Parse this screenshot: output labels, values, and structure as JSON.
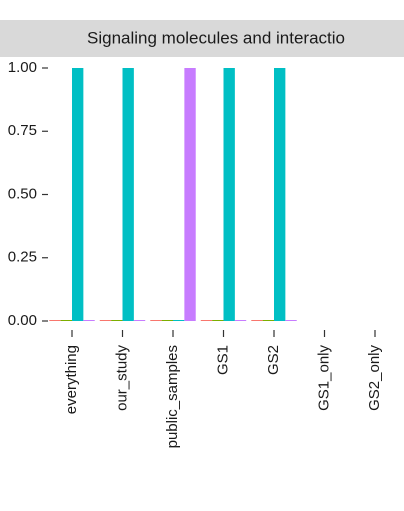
{
  "chart_data": {
    "type": "bar",
    "title": "Signaling molecules and interactio",
    "categories": [
      "everything",
      "our_study",
      "public_samples",
      "GS1",
      "GS2",
      "GS1_only",
      "GS2_only"
    ],
    "series": [
      {
        "color": "#F8766D",
        "values": [
          0,
          0,
          0,
          0,
          0,
          null,
          null
        ]
      },
      {
        "color": "#7CAE00",
        "values": [
          0,
          0,
          0,
          0,
          0,
          null,
          null
        ]
      },
      {
        "color": "#00BFC4",
        "values": [
          1,
          1,
          0,
          1,
          1,
          null,
          null
        ]
      },
      {
        "color": "#C77CFF",
        "values": [
          0,
          0,
          1,
          0,
          0,
          null,
          null
        ]
      }
    ],
    "ylim": [
      0,
      1
    ],
    "yticks": [
      {
        "value": 0,
        "label": "0.00"
      },
      {
        "value": 0.25,
        "label": "0.25"
      },
      {
        "value": 0.5,
        "label": "0.50"
      },
      {
        "value": 0.75,
        "label": "0.75"
      },
      {
        "value": 1,
        "label": "1.00"
      }
    ],
    "grid": false
  }
}
